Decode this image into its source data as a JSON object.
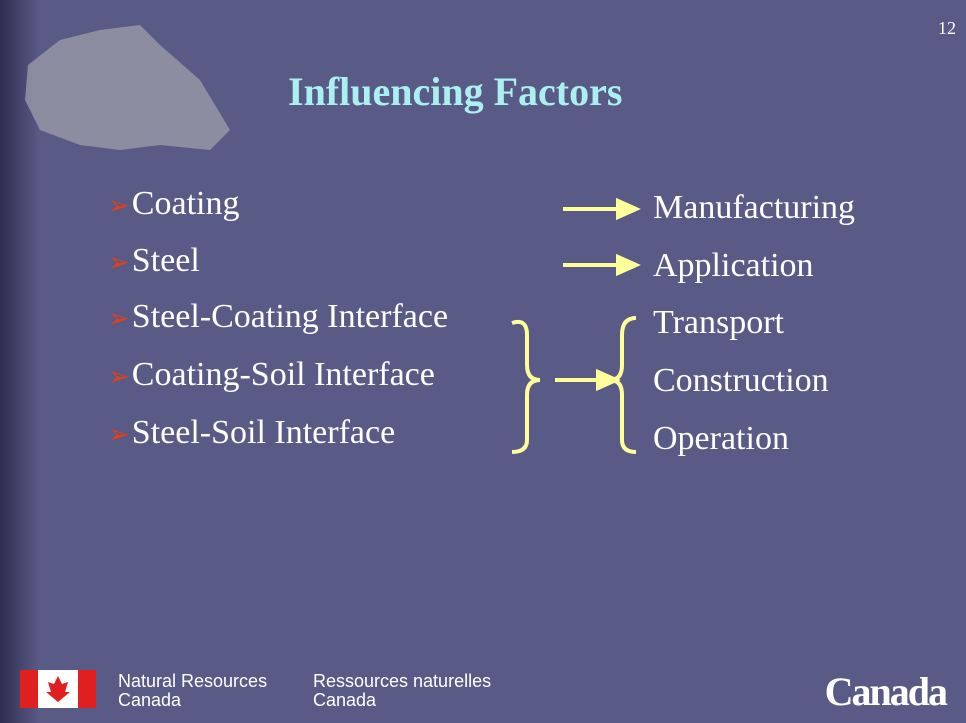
{
  "slide_number": "12",
  "title": "Influencing Factors",
  "left_items": [
    "Coating",
    "Steel",
    "Steel-Coating Interface",
    "Coating-Soil Interface",
    "Steel-Soil Interface"
  ],
  "right_items": [
    "Manufacturing",
    "Application",
    "Transport",
    "Construction",
    "Operation"
  ],
  "footer": {
    "english": [
      "Natural Resources",
      "Canada"
    ],
    "french": [
      "Ressources naturelles",
      "Canada"
    ],
    "wordmark": "Canada"
  }
}
